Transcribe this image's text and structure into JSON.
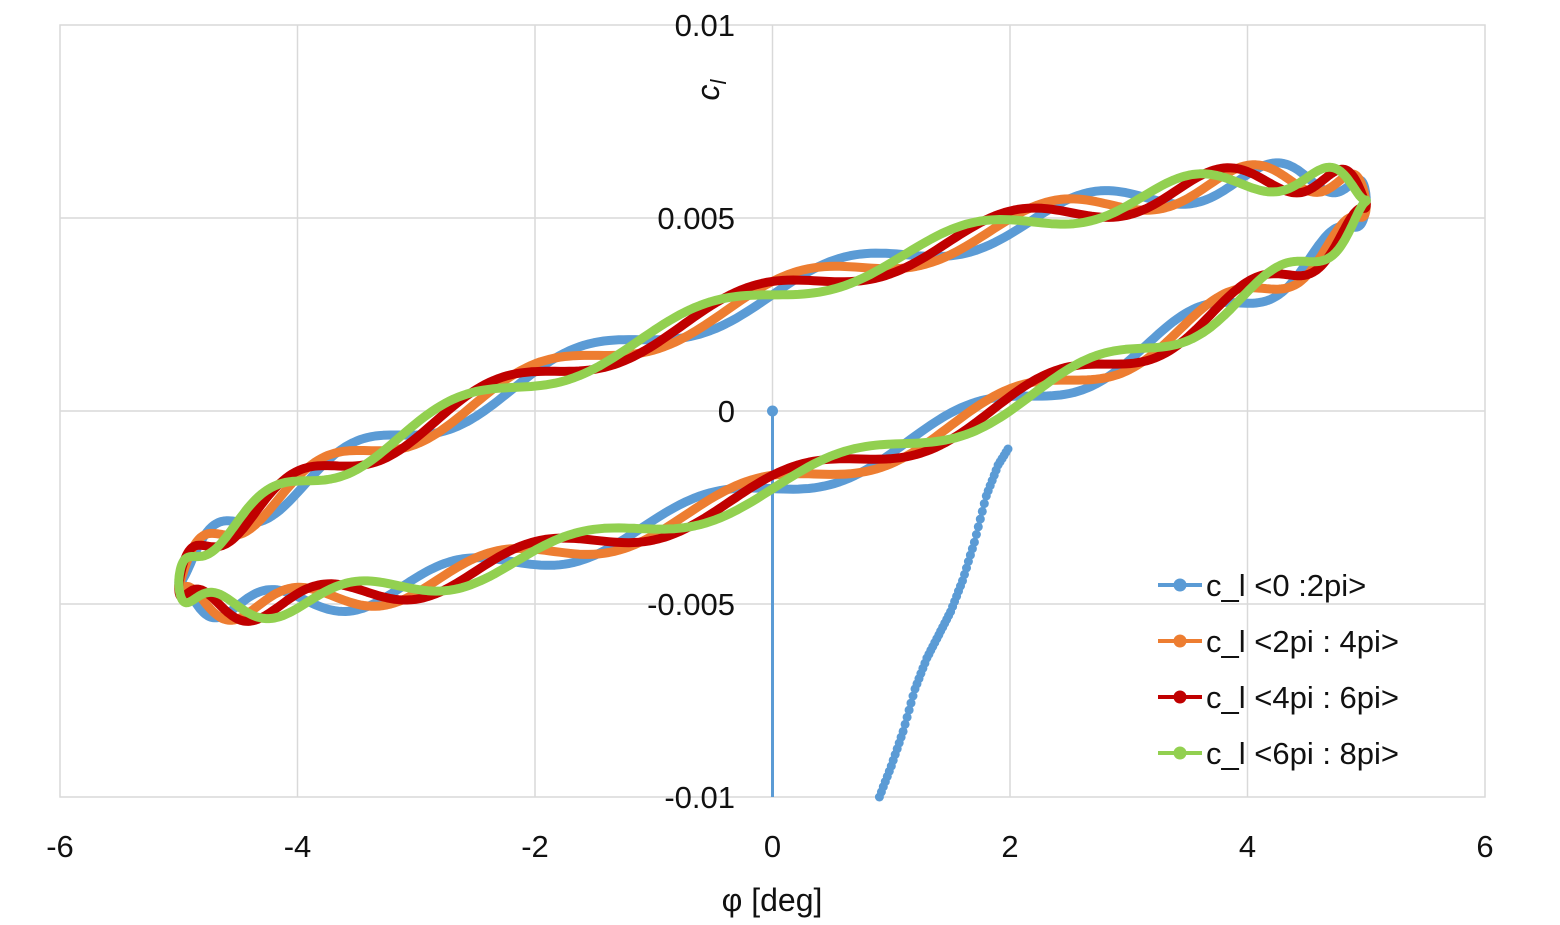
{
  "chart_data": {
    "type": "scatter",
    "title": "",
    "xlabel": "φ [deg]",
    "ylabel": "c_l",
    "ylabel_display": {
      "base": "c",
      "subscript": "l"
    },
    "xlim": [
      -6,
      6
    ],
    "ylim": [
      -0.01,
      0.01
    ],
    "xticks": [
      -6,
      -4,
      -2,
      0,
      2,
      4,
      6
    ],
    "xtick_labels": [
      "-6",
      "-4",
      "-2",
      "0",
      "2",
      "4",
      "6"
    ],
    "yticks": [
      -0.01,
      -0.005,
      0,
      0.005,
      0.01
    ],
    "ytick_labels": [
      "-0.01",
      "-0.005",
      "0",
      "0.005",
      "0.01"
    ],
    "grid": true,
    "legend_position": "bottom-right",
    "loop": {
      "amplitude_deg": 5,
      "center": 0.0005,
      "slope_per_deg": 0.0007,
      "half_width": 0.0029,
      "phase_deg": 60
    },
    "series": [
      {
        "name": "c_l <0 :2pi>",
        "color": "#5b9bd5",
        "segment": [
          0,
          6.2832
        ],
        "phase_offset": 0,
        "ripple": {
          "amplitude": 0.0004,
          "frequency": 14
        },
        "transient_start": [
          [
            0,
            0
          ],
          [
            0,
            -0.01
          ]
        ],
        "transient_points": [
          [
            0.9,
            -0.01
          ],
          [
            1.0,
            -0.0092
          ],
          [
            1.1,
            -0.0083
          ],
          [
            1.2,
            -0.0072
          ],
          [
            1.3,
            -0.0064
          ],
          [
            1.4,
            -0.0058
          ],
          [
            1.5,
            -0.0052
          ],
          [
            1.6,
            -0.0044
          ],
          [
            1.7,
            -0.0034
          ],
          [
            1.8,
            -0.0022
          ],
          [
            1.9,
            -0.0014
          ],
          [
            2.0,
            -0.0009
          ]
        ]
      },
      {
        "name": "c_l <2pi : 4pi>",
        "color": "#ed7d31",
        "segment": [
          6.2832,
          12.5664
        ],
        "phase_offset": 0.35,
        "ripple": {
          "amplitude": 0.0004,
          "frequency": 14
        }
      },
      {
        "name": "c_l <4pi : 6pi>",
        "color": "#c00000",
        "segment": [
          12.5664,
          18.8496
        ],
        "phase_offset": 0.7,
        "ripple": {
          "amplitude": 0.0004,
          "frequency": 14
        }
      },
      {
        "name": "c_l <6pi : 8pi>",
        "color": "#92d050",
        "segment": [
          18.8496,
          25.1327
        ],
        "phase_offset": 1.05,
        "ripple": {
          "amplitude": 0.00035,
          "frequency": 14
        }
      }
    ]
  }
}
